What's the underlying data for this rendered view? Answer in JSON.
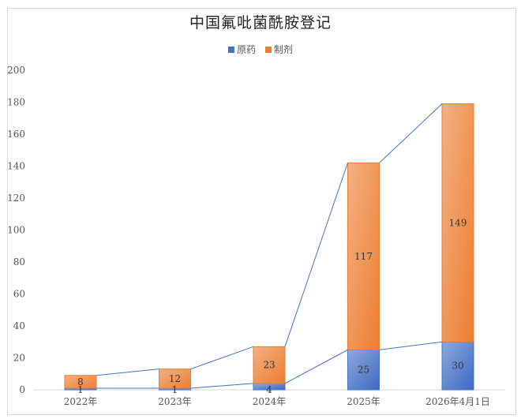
{
  "title": "中国氟吡菌酰胺登记",
  "legend": [
    {
      "label": "原药",
      "color": "#4472c4"
    },
    {
      "label": "制剂",
      "color": "#ed7d31"
    }
  ],
  "chart_data": {
    "type": "bar",
    "stacked": true,
    "title": "中国氟吡菌酰胺登记",
    "categories": [
      "2022年",
      "2023年",
      "2024年",
      "2025年",
      "2026年4月1日"
    ],
    "series": [
      {
        "name": "原药",
        "values": [
          1,
          1,
          4,
          25,
          30
        ],
        "color": "#4472c4"
      },
      {
        "name": "制剂",
        "values": [
          8,
          12,
          23,
          117,
          149
        ],
        "color": "#ed7d31"
      }
    ],
    "series_lines": true,
    "xlabel": "",
    "ylabel": "",
    "ylim": [
      0,
      200
    ],
    "yticks": [
      0,
      20,
      40,
      60,
      80,
      100,
      120,
      140,
      160,
      180,
      200
    ],
    "grid": false,
    "legend_position": "top"
  }
}
